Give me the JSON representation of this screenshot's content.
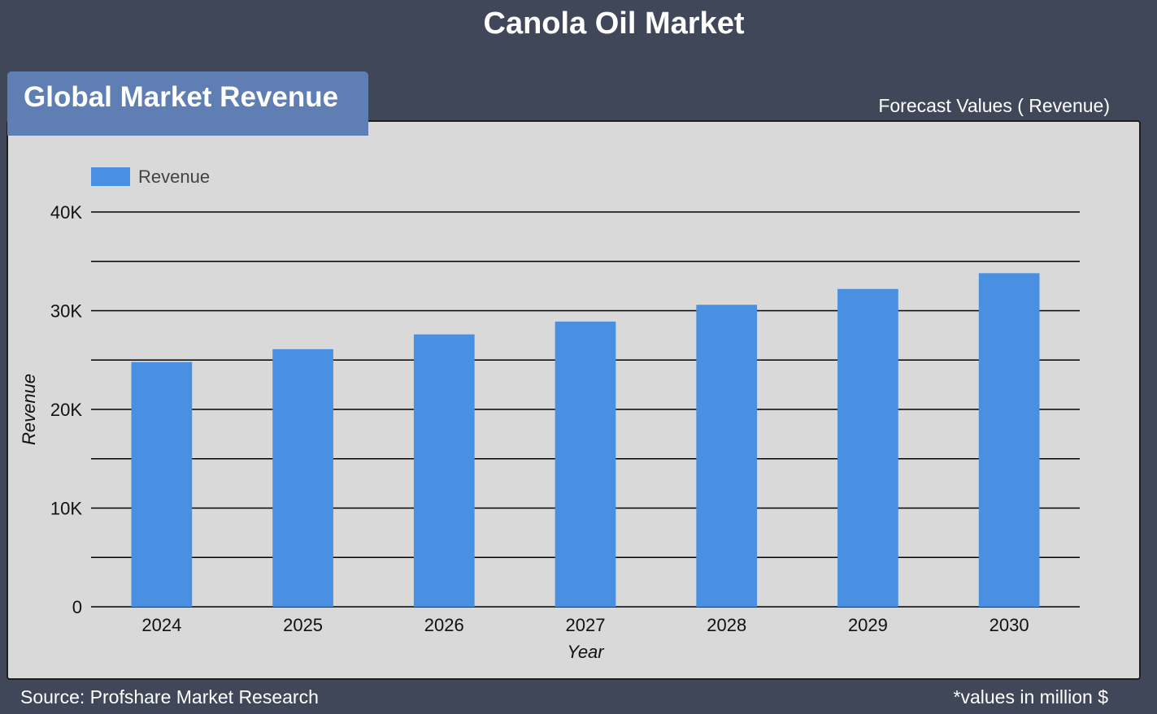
{
  "header": {
    "title": "Canola Oil Market"
  },
  "badge": {
    "label": "Global Market Revenue"
  },
  "subtitle": "Forecast Values ( Revenue)",
  "footer": {
    "source": "Source: Profshare Market Research",
    "note": "*values in million $"
  },
  "chart_data": {
    "type": "bar",
    "categories": [
      "2024",
      "2025",
      "2026",
      "2027",
      "2028",
      "2029",
      "2030"
    ],
    "series": [
      {
        "name": "Revenue",
        "values": [
          24800,
          26100,
          27600,
          28900,
          30600,
          32200,
          33800
        ]
      }
    ],
    "xlabel": "Year",
    "ylabel": "Revenue",
    "ylim": [
      0,
      40000
    ],
    "yticks": [
      0,
      10000,
      20000,
      30000,
      40000
    ],
    "ytick_labels": [
      "0",
      "10K",
      "20K",
      "30K",
      "40K"
    ],
    "grid": true,
    "legend_position": "top-left",
    "colors": {
      "bar": "#4a90e2",
      "grid": "#000000",
      "panel": "#d9d9d9",
      "background": "#3f4758"
    }
  }
}
